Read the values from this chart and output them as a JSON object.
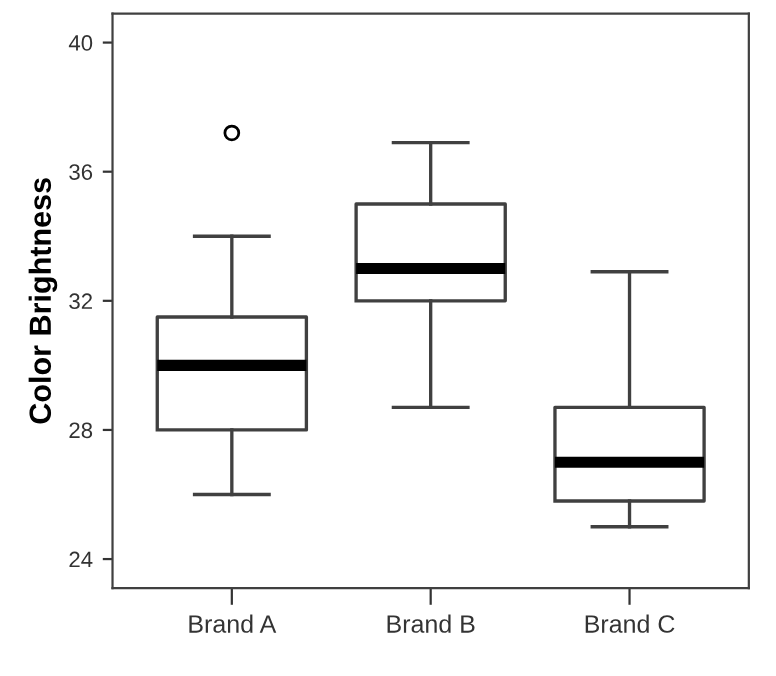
{
  "chart_data": {
    "type": "box",
    "ylabel": "Color Brightness",
    "categories": [
      "Brand A",
      "Brand B",
      "Brand C"
    ],
    "boxes": [
      {
        "low": 26.0,
        "q1": 28.0,
        "median": 30.0,
        "q3": 31.5,
        "high": 34.0,
        "outliers": [
          37.2
        ]
      },
      {
        "low": 28.7,
        "q1": 32.0,
        "median": 33.0,
        "q3": 35.0,
        "high": 36.9
      },
      {
        "low": 25.0,
        "q1": 25.8,
        "median": 27.0,
        "q3": 28.7,
        "high": 32.9
      }
    ],
    "ylim": [
      23.1,
      40.9
    ],
    "yticks": [
      24,
      28,
      32,
      36,
      40
    ],
    "grid": false
  }
}
